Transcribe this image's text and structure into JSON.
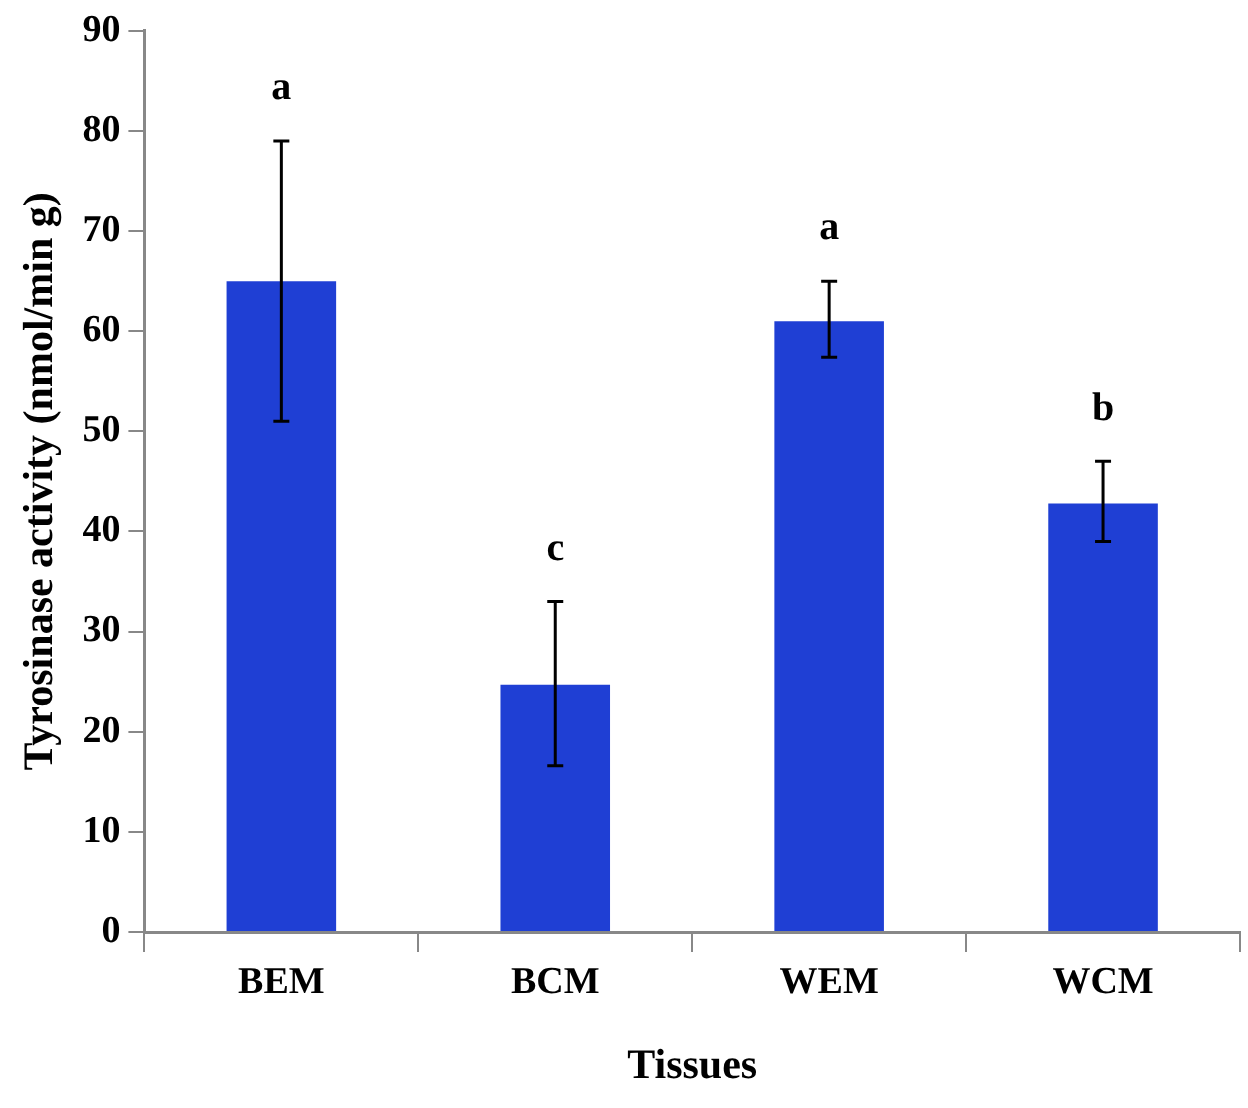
{
  "chart_data": {
    "type": "bar",
    "xlabel": "Tissues",
    "ylabel": "Tyrosinase activity (nmol/min g)",
    "categories": [
      "BEM",
      "BCM",
      "WEM",
      "WCM"
    ],
    "values": [
      65,
      24.7,
      61,
      42.8
    ],
    "color": "#1f3fd4",
    "errors": [
      [
        51,
        79
      ],
      [
        16.6,
        33
      ],
      [
        57.4,
        65
      ],
      [
        39,
        47
      ]
    ],
    "ylim": [
      0,
      90
    ],
    "yticks": [
      0,
      10,
      20,
      30,
      40,
      50,
      60,
      70,
      80,
      90
    ],
    "grid": false,
    "legend": false,
    "annotations": [
      "a",
      "c",
      "a",
      "b"
    ]
  }
}
